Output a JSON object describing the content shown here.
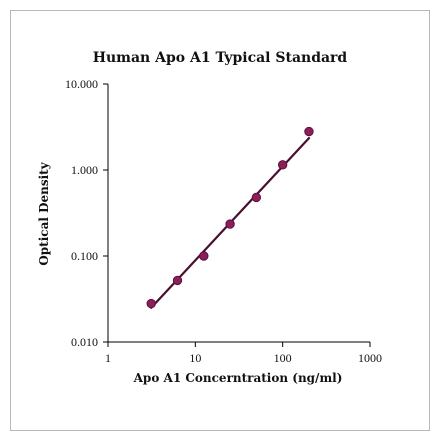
{
  "chart_data": {
    "type": "scatter",
    "title": "Human Apo A1 Typical Standard",
    "xlabel": "Apo A1 Concerntration (ng/ml)",
    "ylabel": "Optical Density",
    "x_scale": "log",
    "y_scale": "log",
    "xlim": [
      1,
      1000
    ],
    "ylim": [
      0.01,
      10
    ],
    "x_ticks": [
      "1",
      "10",
      "100",
      "1000"
    ],
    "y_ticks": [
      "0.010",
      "0.100",
      "1.000",
      "10.000"
    ],
    "grid": false,
    "points": {
      "x": [
        3.125,
        6.25,
        12.5,
        25,
        50,
        100,
        200
      ],
      "y": [
        0.028,
        0.052,
        0.1,
        0.235,
        0.48,
        1.15,
        2.8
      ]
    },
    "fit_line": {
      "x": [
        3.125,
        200
      ],
      "y": [
        0.025,
        2.35
      ]
    },
    "colors": {
      "marker": "#8b1f5a",
      "marker_stroke": "#5e0f3c",
      "line": "#4a0f30",
      "axis": "#000000"
    }
  }
}
